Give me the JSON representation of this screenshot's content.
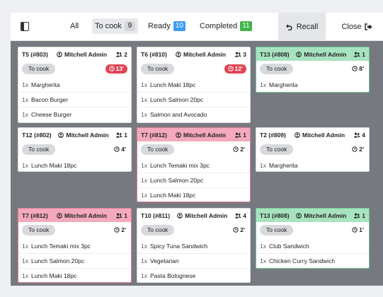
{
  "topbar": {
    "filters": [
      {
        "label": "All",
        "count": ""
      },
      {
        "label": "To cook",
        "count": "9",
        "count_color": "#d4d6d9"
      },
      {
        "label": "Ready",
        "count": "10",
        "count_color": "#3b9df5"
      },
      {
        "label": "Completed",
        "count": "11",
        "count_color": "#43b548"
      }
    ],
    "recall_label": "Recall",
    "close_label": "Close"
  },
  "orders": [
    {
      "title": "T5 (#803)",
      "waiter": "Mitchell Admin",
      "guests": "2",
      "status": "To cook",
      "time": "13'",
      "late": true,
      "color": "white",
      "lines": [
        {
          "qty": "1x",
          "name": "Margherita"
        },
        {
          "qty": "1x",
          "name": "Bacon Burger"
        },
        {
          "qty": "1x",
          "name": "Cheese Burger"
        }
      ]
    },
    {
      "title": "T6 (#810)",
      "waiter": "Mitchell Admin",
      "guests": "3",
      "status": "To cook",
      "time": "12'",
      "late": true,
      "color": "white",
      "lines": [
        {
          "qty": "1x",
          "name": "Lunch Maki 18pc"
        },
        {
          "qty": "1x",
          "name": "Lunch Salmon 20pc"
        },
        {
          "qty": "1x",
          "name": "Salmon and Avocado"
        }
      ]
    },
    {
      "title": "T13 (#808)",
      "waiter": "Mitchell Admin",
      "guests": "1",
      "status": "To cook",
      "time": "8'",
      "late": false,
      "color": "green",
      "lines": [
        {
          "qty": "1x",
          "name": "Margherita"
        }
      ]
    },
    {
      "title": "T12 (#802)",
      "waiter": "Mitchell Admin",
      "guests": "1",
      "status": "To cook",
      "time": "4'",
      "late": false,
      "color": "white",
      "lines": [
        {
          "qty": "1x",
          "name": "Lunch Maki 18pc"
        }
      ]
    },
    {
      "title": "T7 (#812)",
      "waiter": "Mitchell Admin",
      "guests": "1",
      "status": "To cook",
      "time": "2'",
      "late": false,
      "color": "pink",
      "lines": [
        {
          "qty": "1x",
          "name": "Lunch Temaki mix 3pc"
        },
        {
          "qty": "1x",
          "name": "Lunch Salmon 20pc"
        },
        {
          "qty": "1x",
          "name": "Lunch Maki 18pc"
        }
      ]
    },
    {
      "title": "T2 (#809)",
      "waiter": "Mitchell Admin",
      "guests": "4",
      "status": "To cook",
      "time": "2'",
      "late": false,
      "color": "white",
      "lines": [
        {
          "qty": "1x",
          "name": "Margherita"
        }
      ]
    },
    {
      "title": "T7 (#812)",
      "waiter": "Mitchell Admin",
      "guests": "1",
      "status": "To cook",
      "time": "2'",
      "late": false,
      "color": "pink",
      "lines": [
        {
          "qty": "1x",
          "name": "Lunch Temaki mix 3pc"
        },
        {
          "qty": "1x",
          "name": "Lunch Salmon 20pc"
        },
        {
          "qty": "1x",
          "name": "Lunch Maki 18pc"
        }
      ]
    },
    {
      "title": "T10 (#811)",
      "waiter": "Mitchell Admin",
      "guests": "4",
      "status": "To cook",
      "time": "2'",
      "late": false,
      "color": "white",
      "lines": [
        {
          "qty": "1x",
          "name": "Spicy Tuna Sandwich"
        },
        {
          "qty": "1x",
          "name": "Vegetarian"
        },
        {
          "qty": "1x",
          "name": "Pasta Bolognese"
        }
      ]
    },
    {
      "title": "T13 (#808)",
      "waiter": "Mitchell Admin",
      "guests": "1",
      "status": "To cook",
      "time": "1'",
      "late": false,
      "color": "green",
      "lines": [
        {
          "qty": "1x",
          "name": "Club Sandwich"
        },
        {
          "qty": "1x",
          "name": "Chicken Curry Sandwich"
        }
      ]
    }
  ]
}
